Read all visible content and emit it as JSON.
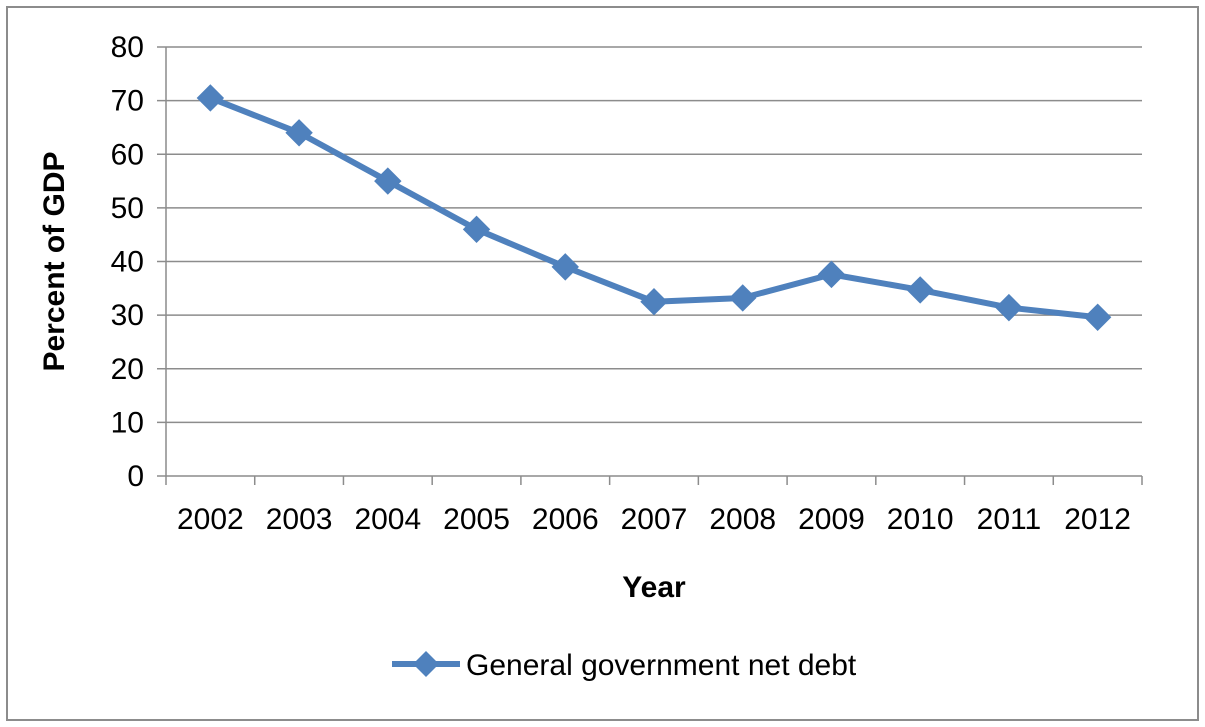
{
  "chart_data": {
    "type": "line",
    "title": "",
    "xlabel": "Year",
    "ylabel": "Percent of GDP",
    "categories": [
      "2002",
      "2003",
      "2004",
      "2005",
      "2006",
      "2007",
      "2008",
      "2009",
      "2010",
      "2011",
      "2012"
    ],
    "series": [
      {
        "name": "General government net debt",
        "values": [
          70.5,
          64,
          55,
          46,
          39,
          32.5,
          33.2,
          37.6,
          34.7,
          31.4,
          29.6
        ],
        "color": "#4f81bd",
        "marker": "diamond"
      }
    ],
    "ylim": [
      0,
      80
    ],
    "yticks": [
      0,
      10,
      20,
      30,
      40,
      50,
      60,
      70,
      80
    ],
    "grid": "horizontal",
    "legend_position": "bottom"
  }
}
